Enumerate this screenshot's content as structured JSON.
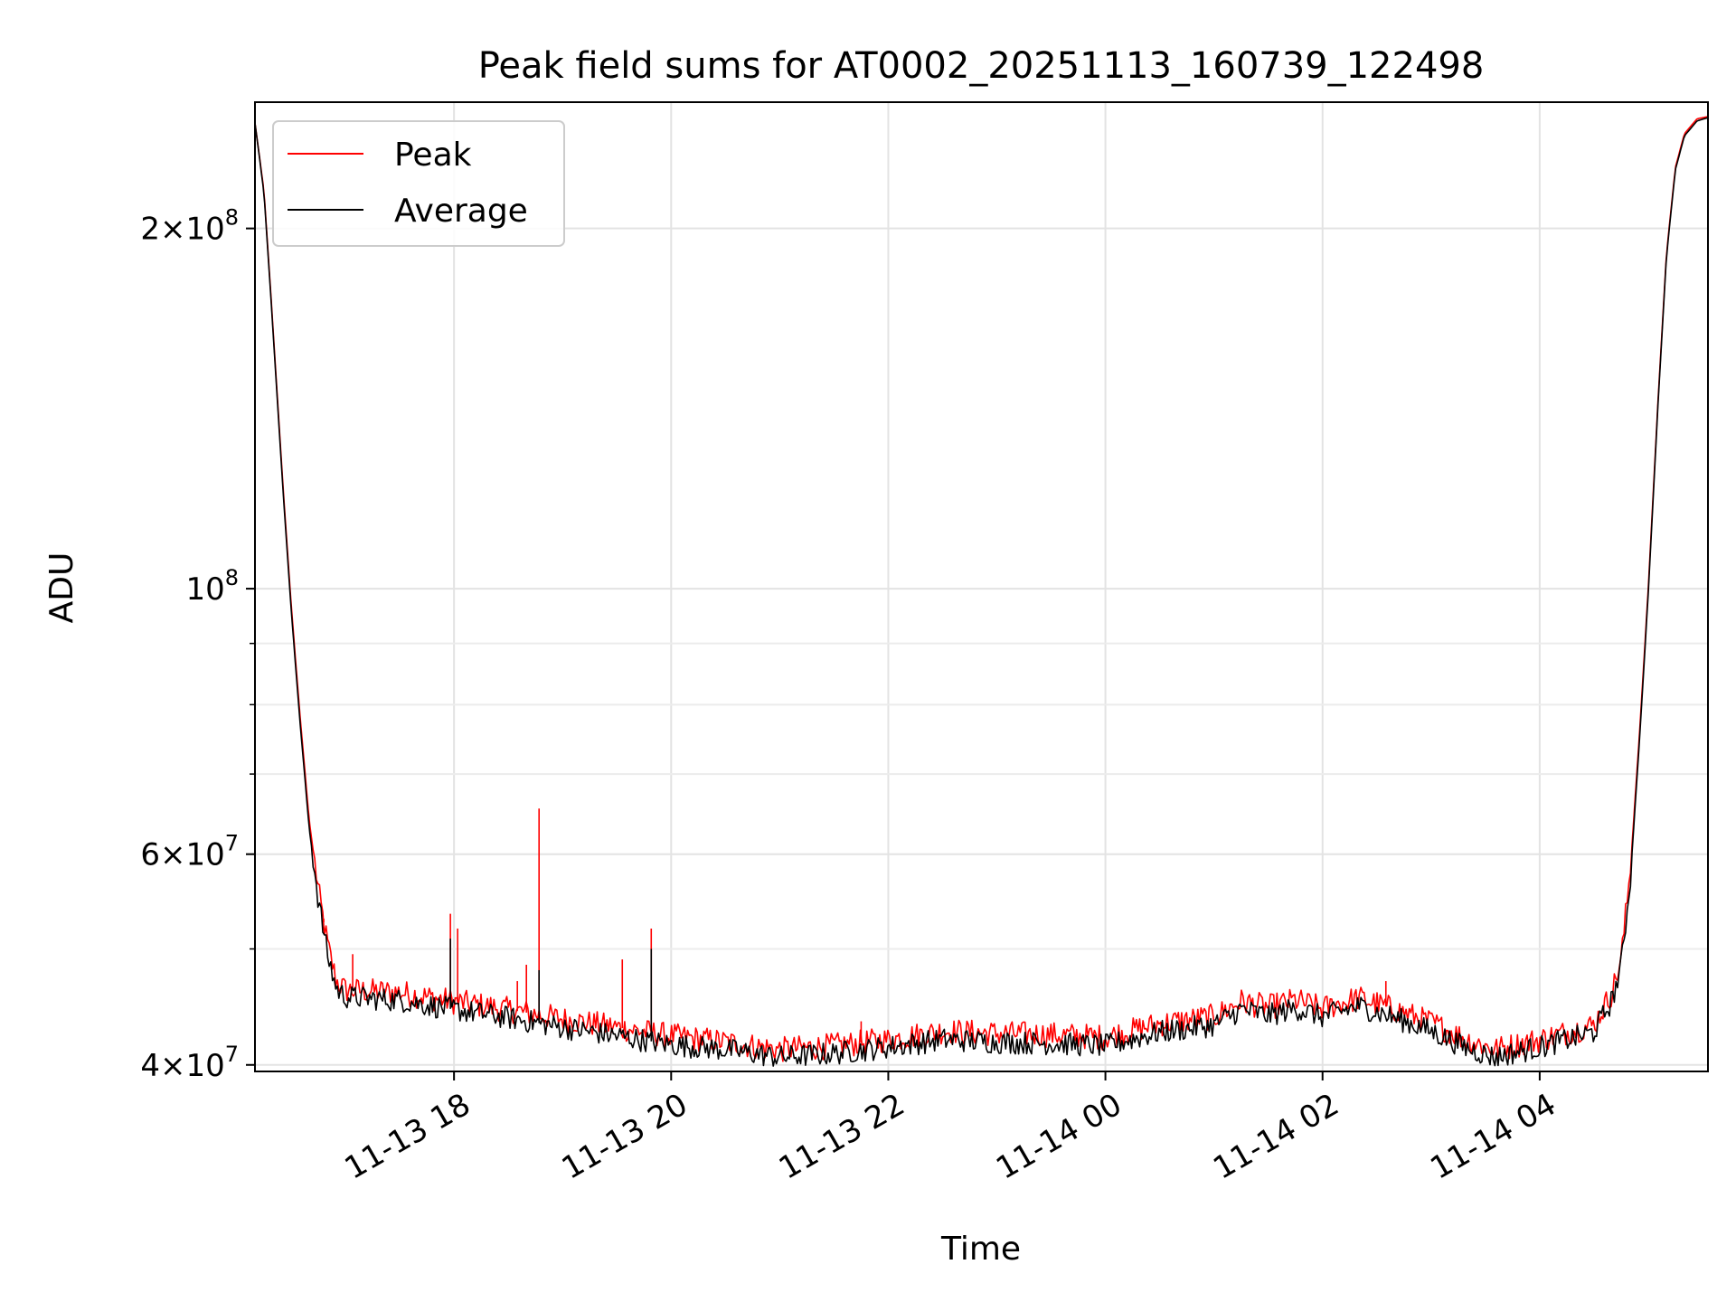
{
  "chart_data": {
    "type": "line",
    "title": "Peak field sums for AT0002_20251113_160739_122498",
    "xlabel": "Time",
    "ylabel": "ADU",
    "y_scale": "log",
    "ylim": [
      39500000,
      255000000
    ],
    "xlim": [
      "2025-11-13 16:10",
      "2025-11-14 05:33"
    ],
    "grid": true,
    "legend_position": "top-left",
    "x_ticks": [
      {
        "value": "2025-11-13 18:00",
        "label": "11-13 18"
      },
      {
        "value": "2025-11-13 20:00",
        "label": "11-13 20"
      },
      {
        "value": "2025-11-13 22:00",
        "label": "11-13 22"
      },
      {
        "value": "2025-11-14 00:00",
        "label": "11-14 00"
      },
      {
        "value": "2025-11-14 02:00",
        "label": "11-14 02"
      },
      {
        "value": "2025-11-14 04:00",
        "label": "11-14 04"
      }
    ],
    "y_major_ticks": [
      {
        "value": 40000000,
        "mant": "4",
        "exp": "7"
      },
      {
        "value": 60000000,
        "mant": "6",
        "exp": "7"
      },
      {
        "value": 100000000,
        "mant": "",
        "exp": "8"
      },
      {
        "value": 200000000,
        "mant": "2",
        "exp": "8"
      }
    ],
    "y_minor_ticks": [
      50000000,
      70000000,
      80000000,
      90000000
    ],
    "series": [
      {
        "name": "Peak",
        "color": "#ff0000",
        "points": [
          [
            "2025-11-13 16:10",
            245000000
          ],
          [
            "2025-11-13 16:15",
            215000000
          ],
          [
            "2025-11-13 16:20",
            165000000
          ],
          [
            "2025-11-13 16:25",
            125000000
          ],
          [
            "2025-11-13 16:30",
            97000000
          ],
          [
            "2025-11-13 16:35",
            78000000
          ],
          [
            "2025-11-13 16:40",
            64000000
          ],
          [
            "2025-11-13 16:45",
            56000000
          ],
          [
            "2025-11-13 16:50",
            50500000
          ],
          [
            "2025-11-13 16:55",
            47000000
          ],
          [
            "2025-11-13 17:00",
            46200000
          ],
          [
            "2025-11-13 17:30",
            46000000
          ],
          [
            "2025-11-13 18:00",
            45200000
          ],
          [
            "2025-11-13 18:30",
            44500000
          ],
          [
            "2025-11-13 19:00",
            43700000
          ],
          [
            "2025-11-13 19:30",
            43000000
          ],
          [
            "2025-11-13 20:00",
            42300000
          ],
          [
            "2025-11-13 20:30",
            41800000
          ],
          [
            "2025-11-13 21:00",
            41200000
          ],
          [
            "2025-11-13 21:30",
            41500000
          ],
          [
            "2025-11-13 22:00",
            42000000
          ],
          [
            "2025-11-13 22:30",
            42700000
          ],
          [
            "2025-11-13 23:00",
            42500000
          ],
          [
            "2025-11-13 23:30",
            42400000
          ],
          [
            "2025-11-14 00:00",
            42200000
          ],
          [
            "2025-11-14 00:30",
            43300000
          ],
          [
            "2025-11-14 01:00",
            43900000
          ],
          [
            "2025-11-14 01:15",
            45200000
          ],
          [
            "2025-11-14 01:30",
            44700000
          ],
          [
            "2025-11-14 01:45",
            45300000
          ],
          [
            "2025-11-14 02:00",
            44600000
          ],
          [
            "2025-11-14 02:20",
            45500000
          ],
          [
            "2025-11-14 02:40",
            44500000
          ],
          [
            "2025-11-14 03:00",
            43400000
          ],
          [
            "2025-11-14 03:20",
            42000000
          ],
          [
            "2025-11-14 03:35",
            41200000
          ],
          [
            "2025-11-14 04:00",
            42000000
          ],
          [
            "2025-11-14 04:30",
            43200000
          ],
          [
            "2025-11-14 04:40",
            46000000
          ],
          [
            "2025-11-14 04:45",
            49000000
          ],
          [
            "2025-11-14 04:50",
            58000000
          ],
          [
            "2025-11-14 04:55",
            75000000
          ],
          [
            "2025-11-14 05:00",
            100000000
          ],
          [
            "2025-11-14 05:05",
            140000000
          ],
          [
            "2025-11-14 05:10",
            190000000
          ],
          [
            "2025-11-14 05:15",
            225000000
          ],
          [
            "2025-11-14 05:20",
            240000000
          ],
          [
            "2025-11-14 05:27",
            247000000
          ],
          [
            "2025-11-14 05:33",
            248000000
          ]
        ],
        "spikes": [
          [
            "2025-11-13 16:45",
            56000000
          ],
          [
            "2025-11-13 16:48",
            53000000
          ],
          [
            "2025-11-13 17:04",
            49500000
          ],
          [
            "2025-11-13 17:58",
            53500000
          ],
          [
            "2025-11-13 18:02",
            52000000
          ],
          [
            "2025-11-13 18:35",
            47000000
          ],
          [
            "2025-11-13 18:40",
            48500000
          ],
          [
            "2025-11-13 18:47",
            65500000
          ],
          [
            "2025-11-13 19:33",
            49000000
          ],
          [
            "2025-11-13 19:49",
            52000000
          ],
          [
            "2025-11-13 21:45",
            43500000
          ],
          [
            "2025-11-14 02:35",
            47000000
          ]
        ]
      },
      {
        "name": "Average",
        "color": "#000000",
        "points": [
          [
            "2025-11-13 16:10",
            245000000
          ],
          [
            "2025-11-13 16:15",
            214000000
          ],
          [
            "2025-11-13 16:20",
            164000000
          ],
          [
            "2025-11-13 16:25",
            124000000
          ],
          [
            "2025-11-13 16:30",
            96000000
          ],
          [
            "2025-11-13 16:35",
            77000000
          ],
          [
            "2025-11-13 16:40",
            63000000
          ],
          [
            "2025-11-13 16:45",
            55000000
          ],
          [
            "2025-11-13 16:50",
            49500000
          ],
          [
            "2025-11-13 16:55",
            46300000
          ],
          [
            "2025-11-13 17:00",
            45600000
          ],
          [
            "2025-11-13 17:30",
            45300000
          ],
          [
            "2025-11-13 18:00",
            44500000
          ],
          [
            "2025-11-13 18:30",
            43800000
          ],
          [
            "2025-11-13 19:00",
            43000000
          ],
          [
            "2025-11-13 19:30",
            42300000
          ],
          [
            "2025-11-13 20:00",
            41600000
          ],
          [
            "2025-11-13 20:30",
            41200000
          ],
          [
            "2025-11-13 21:00",
            40600000
          ],
          [
            "2025-11-13 21:30",
            40900000
          ],
          [
            "2025-11-13 22:00",
            41400000
          ],
          [
            "2025-11-13 22:30",
            42000000
          ],
          [
            "2025-11-13 23:00",
            41800000
          ],
          [
            "2025-11-13 23:30",
            41700000
          ],
          [
            "2025-11-14 00:00",
            41500000
          ],
          [
            "2025-11-14 00:30",
            42600000
          ],
          [
            "2025-11-14 01:00",
            43200000
          ],
          [
            "2025-11-14 01:15",
            44500000
          ],
          [
            "2025-11-14 01:30",
            44000000
          ],
          [
            "2025-11-14 01:45",
            44600000
          ],
          [
            "2025-11-14 02:00",
            43900000
          ],
          [
            "2025-11-14 02:20",
            44800000
          ],
          [
            "2025-11-14 02:40",
            43800000
          ],
          [
            "2025-11-14 03:00",
            42700000
          ],
          [
            "2025-11-14 03:20",
            41300000
          ],
          [
            "2025-11-14 03:35",
            40600000
          ],
          [
            "2025-11-14 04:00",
            41400000
          ],
          [
            "2025-11-14 04:30",
            42600000
          ],
          [
            "2025-11-14 04:40",
            45300000
          ],
          [
            "2025-11-14 04:45",
            48300000
          ],
          [
            "2025-11-14 04:50",
            57000000
          ],
          [
            "2025-11-14 04:55",
            74000000
          ],
          [
            "2025-11-14 05:00",
            99000000
          ],
          [
            "2025-11-14 05:05",
            139000000
          ],
          [
            "2025-11-14 05:10",
            189000000
          ],
          [
            "2025-11-14 05:15",
            224000000
          ],
          [
            "2025-11-14 05:20",
            239000000
          ],
          [
            "2025-11-14 05:27",
            246000000
          ],
          [
            "2025-11-14 05:33",
            247500000
          ]
        ],
        "spikes": [
          [
            "2025-11-13 17:58",
            51000000
          ],
          [
            "2025-11-13 18:47",
            48000000
          ],
          [
            "2025-11-13 19:49",
            50000000
          ]
        ]
      }
    ]
  }
}
